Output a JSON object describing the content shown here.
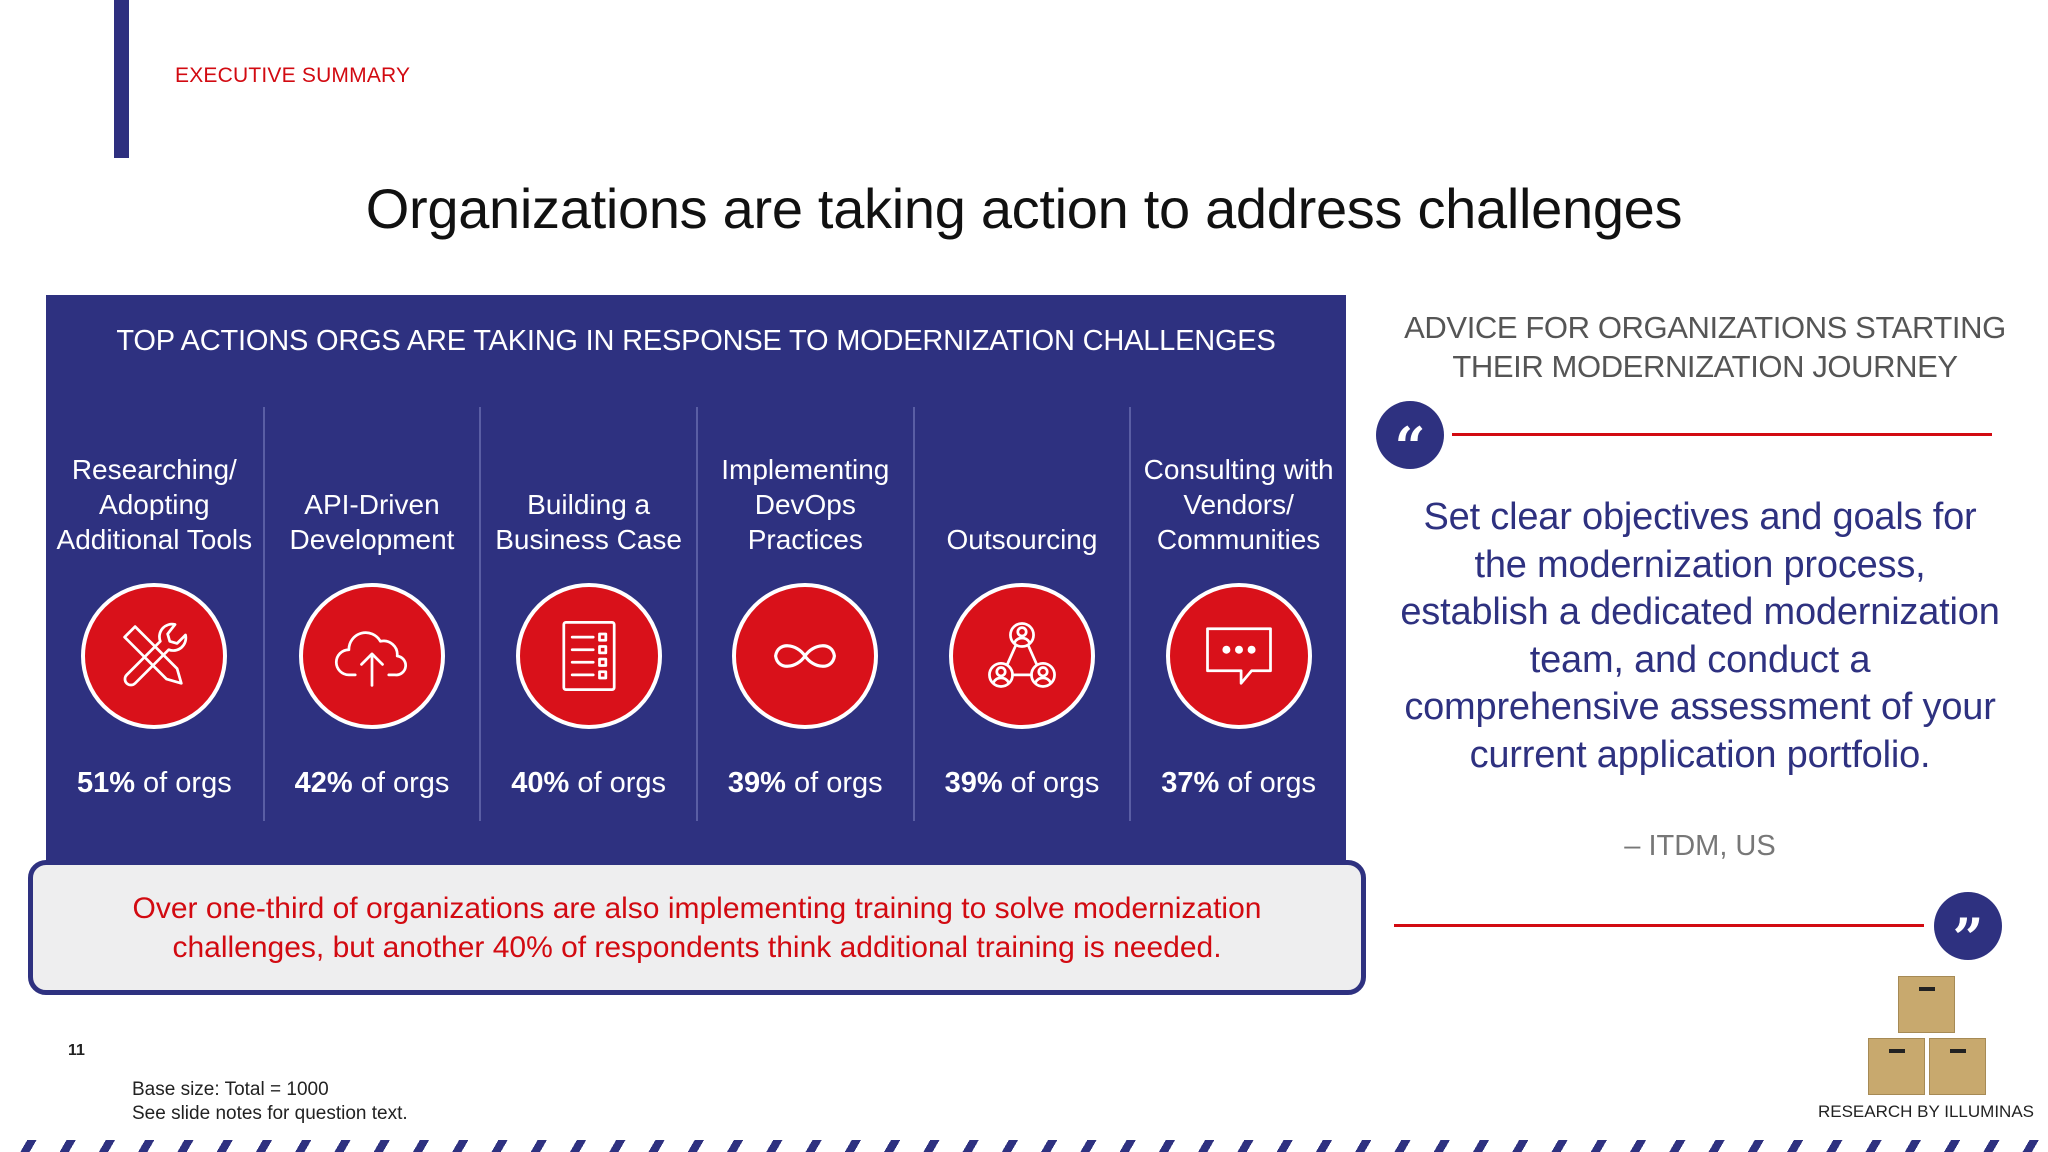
{
  "header": {
    "section_label": "EXECUTIVE SUMMARY",
    "title": "Organizations are taking action to address challenges"
  },
  "actions_panel": {
    "title": "TOP ACTIONS ORGS ARE TAKING IN RESPONSE TO MODERNIZATION CHALLENGES",
    "items": [
      {
        "label": "Researching/ Adopting Additional Tools",
        "pct": "51%",
        "suffix": " of orgs",
        "value": 51,
        "icon": "tools-icon"
      },
      {
        "label": "API-Driven Development",
        "pct": "42%",
        "suffix": " of orgs",
        "value": 42,
        "icon": "cloud-upload-icon"
      },
      {
        "label": "Building a Business Case",
        "pct": "40%",
        "suffix": " of orgs",
        "value": 40,
        "icon": "checklist-icon"
      },
      {
        "label": "Implementing DevOps Practices",
        "pct": "39%",
        "suffix": " of orgs",
        "value": 39,
        "icon": "infinity-icon"
      },
      {
        "label": "Outsourcing",
        "pct": "39%",
        "suffix": " of orgs",
        "value": 39,
        "icon": "people-network-icon"
      },
      {
        "label": "Consulting with Vendors/ Communities",
        "pct": "37%",
        "suffix": " of orgs",
        "value": 37,
        "icon": "chat-bubble-icon"
      }
    ],
    "callout": "Over one-third of organizations are also implementing training to solve modernization challenges, but another 40% of respondents think additional training is needed."
  },
  "advice": {
    "title": "ADVICE FOR ORGANIZATIONS STARTING THEIR MODERNIZATION JOURNEY",
    "quote": "Set clear objectives and goals for the modernization process, establish a dedicated modernization team, and conduct a comprehensive assessment of your current application portfolio.",
    "attribution": "– ITDM, US",
    "open_mark": "“",
    "close_mark": "”"
  },
  "footer": {
    "page_number": "11",
    "base_size": "Base size: Total = 1000",
    "notes": "See slide notes for question text.",
    "research_credit": "RESEARCH BY ILLUMINAS"
  },
  "colors": {
    "navy": "#2e3180",
    "red": "#d20a11",
    "icon_red": "#d9111a",
    "box_tan": "#c8a96e"
  }
}
